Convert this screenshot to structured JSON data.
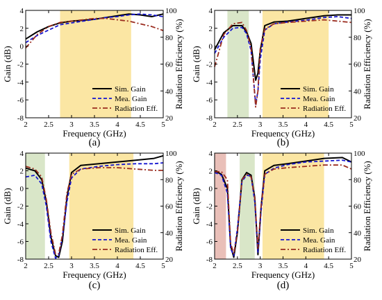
{
  "figure": {
    "x_axis_label": "Frequency (GHz)",
    "y_axis_left_label": "Gain (dB)",
    "y_axis_right_label": "Radiation Efficiency (%)",
    "legend_entries": [
      "Sim. Gain",
      "Mea. Gain",
      "Radiation Eff."
    ],
    "x_ticks": [
      "2",
      "2.5",
      "3",
      "3.5",
      "4",
      "4.5",
      "5"
    ],
    "y_left_ticks": [
      "-8",
      "-6",
      "-4",
      "-2",
      "0",
      "2",
      "4"
    ],
    "y_right_ticks": [
      "20",
      "40",
      "60",
      "80",
      "100"
    ]
  },
  "colors": {
    "sim": "#000000",
    "mea": "#1515d0",
    "eff": "#9a2b1e",
    "band_yellow": "#fbe6a3",
    "band_green": "#d9e6c8",
    "band_red": "#e9bfb8"
  },
  "chart_data": [
    {
      "type": "line",
      "panel_label": "(a)",
      "xlabel": "Frequency (GHz)",
      "ylabel": "Gain (dB)",
      "ylabel_right": "Radiation Efficiency (%)",
      "xlim": [
        2,
        5
      ],
      "ylim": [
        -8,
        4
      ],
      "ylim_right": [
        20,
        100
      ],
      "grid": false,
      "legend": "bottom-right",
      "bands": [
        {
          "from": 2.75,
          "to": 4.3,
          "color": "yellow"
        }
      ],
      "series": [
        {
          "name": "Sim. Gain",
          "axis": "left",
          "style": "solid",
          "x": [
            2.0,
            2.25,
            2.5,
            2.75,
            3.0,
            3.25,
            3.5,
            3.75,
            4.0,
            4.25,
            4.5,
            4.75,
            5.0
          ],
          "y": [
            0.8,
            1.6,
            2.2,
            2.6,
            2.8,
            2.9,
            3.0,
            3.2,
            3.4,
            3.6,
            3.5,
            3.3,
            3.6
          ]
        },
        {
          "name": "Mea. Gain",
          "axis": "left",
          "style": "dash",
          "x": [
            2.0,
            2.25,
            2.5,
            2.75,
            3.0,
            3.25,
            3.5,
            3.75,
            4.0,
            4.25,
            4.5,
            4.75,
            5.0
          ],
          "y": [
            0.4,
            1.2,
            1.8,
            2.4,
            2.6,
            2.8,
            3.0,
            3.2,
            3.3,
            3.5,
            3.6,
            3.5,
            3.3
          ]
        },
        {
          "name": "Radiation Eff.",
          "axis": "right",
          "style": "dashdot",
          "x": [
            2.0,
            2.25,
            2.5,
            2.75,
            3.0,
            3.25,
            3.5,
            3.75,
            4.0,
            4.25,
            4.5,
            4.75,
            5.0
          ],
          "y": [
            72,
            82,
            88,
            91,
            92,
            93,
            94,
            94,
            93,
            92,
            90,
            88,
            85
          ]
        }
      ]
    },
    {
      "type": "line",
      "panel_label": "(b)",
      "xlabel": "Frequency (GHz)",
      "ylabel": "Gain (dB)",
      "ylabel_right": "Radiation Efficiency (%)",
      "xlim": [
        2,
        5
      ],
      "ylim": [
        -8,
        4
      ],
      "ylim_right": [
        20,
        100
      ],
      "grid": false,
      "legend": "bottom-right",
      "bands": [
        {
          "from": 2.28,
          "to": 2.75,
          "color": "green"
        },
        {
          "from": 3.05,
          "to": 4.5,
          "color": "yellow"
        }
      ],
      "series": [
        {
          "name": "Sim. Gain",
          "axis": "left",
          "style": "solid",
          "x": [
            2.0,
            2.2,
            2.4,
            2.6,
            2.7,
            2.8,
            2.9,
            2.95,
            3.0,
            3.1,
            3.3,
            3.6,
            4.0,
            4.4,
            4.7,
            5.0
          ],
          "y": [
            -0.4,
            1.5,
            2.3,
            2.3,
            1.6,
            0.3,
            -3.8,
            -3.0,
            -0.5,
            2.3,
            2.7,
            2.8,
            3.1,
            3.4,
            3.5,
            3.5
          ]
        },
        {
          "name": "Mea. Gain",
          "axis": "left",
          "style": "dash",
          "x": [
            2.0,
            2.2,
            2.4,
            2.6,
            2.7,
            2.8,
            2.9,
            2.95,
            3.0,
            3.1,
            3.3,
            3.6,
            4.0,
            4.4,
            4.7,
            5.0
          ],
          "y": [
            -0.8,
            1.0,
            2.0,
            2.1,
            1.4,
            -0.5,
            -6.5,
            -5.0,
            -1.5,
            1.8,
            2.5,
            2.7,
            2.9,
            3.2,
            3.3,
            3.1
          ]
        },
        {
          "name": "Radiation Eff.",
          "axis": "right",
          "style": "dashdot",
          "x": [
            2.0,
            2.2,
            2.4,
            2.6,
            2.7,
            2.8,
            2.9,
            2.95,
            3.0,
            3.1,
            3.3,
            3.6,
            4.0,
            4.4,
            4.7,
            5.0
          ],
          "y": [
            58,
            82,
            90,
            91,
            85,
            72,
            28,
            40,
            72,
            86,
            90,
            91,
            92,
            93,
            92,
            91
          ]
        }
      ]
    },
    {
      "type": "line",
      "panel_label": "(c)",
      "xlabel": "Frequency (GHz)",
      "ylabel": "Gain (dB)",
      "ylabel_right": "Radiation Efficiency (%)",
      "xlim": [
        2,
        5
      ],
      "ylim": [
        -8,
        4
      ],
      "ylim_right": [
        20,
        100
      ],
      "grid": false,
      "legend": "bottom-right",
      "bands": [
        {
          "from": 2.0,
          "to": 2.42,
          "color": "green"
        },
        {
          "from": 2.95,
          "to": 4.35,
          "color": "yellow"
        }
      ],
      "series": [
        {
          "name": "Sim. Gain",
          "axis": "left",
          "style": "solid",
          "x": [
            2.0,
            2.2,
            2.35,
            2.45,
            2.55,
            2.65,
            2.72,
            2.8,
            2.9,
            3.0,
            3.2,
            3.6,
            4.0,
            4.4,
            4.8,
            5.0
          ],
          "y": [
            2.3,
            2.0,
            1.0,
            -1.5,
            -5.5,
            -7.6,
            -7.8,
            -6.0,
            -1.0,
            1.8,
            2.6,
            2.8,
            3.0,
            3.2,
            3.4,
            3.7
          ]
        },
        {
          "name": "Mea. Gain",
          "axis": "left",
          "style": "dash",
          "x": [
            2.0,
            2.2,
            2.35,
            2.45,
            2.55,
            2.65,
            2.72,
            2.8,
            2.9,
            3.0,
            3.2,
            3.6,
            4.0,
            4.4,
            4.8,
            5.0
          ],
          "y": [
            1.3,
            1.5,
            0.5,
            -2.0,
            -6.0,
            -7.9,
            -7.6,
            -5.5,
            -1.5,
            1.2,
            2.2,
            2.5,
            2.7,
            2.8,
            2.8,
            2.9
          ]
        },
        {
          "name": "Radiation Eff.",
          "axis": "right",
          "style": "dashdot",
          "x": [
            2.0,
            2.2,
            2.35,
            2.45,
            2.55,
            2.65,
            2.72,
            2.8,
            2.9,
            3.0,
            3.2,
            3.6,
            4.0,
            4.4,
            4.8,
            5.0
          ],
          "y": [
            90,
            88,
            82,
            65,
            40,
            24,
            24,
            38,
            70,
            84,
            88,
            89,
            89,
            88,
            87,
            87
          ]
        }
      ]
    },
    {
      "type": "line",
      "panel_label": "(d)",
      "xlabel": "Frequency (GHz)",
      "ylabel": "Gain (dB)",
      "ylabel_right": "Radiation Efficiency (%)",
      "xlim": [
        2,
        5
      ],
      "ylim": [
        -8,
        4
      ],
      "ylim_right": [
        20,
        100
      ],
      "grid": false,
      "legend": "bottom-right",
      "bands": [
        {
          "from": 2.0,
          "to": 2.25,
          "color": "red"
        },
        {
          "from": 2.55,
          "to": 2.88,
          "color": "green"
        },
        {
          "from": 3.05,
          "to": 4.4,
          "color": "yellow"
        }
      ],
      "series": [
        {
          "name": "Sim. Gain",
          "axis": "left",
          "style": "solid",
          "x": [
            2.0,
            2.15,
            2.28,
            2.35,
            2.42,
            2.5,
            2.6,
            2.7,
            2.8,
            2.88,
            2.95,
            3.02,
            3.1,
            3.3,
            3.6,
            4.0,
            4.4,
            4.8,
            5.0
          ],
          "y": [
            2.0,
            1.6,
            0.0,
            -6.5,
            -7.8,
            -5.0,
            1.0,
            1.8,
            1.5,
            -1.0,
            -7.5,
            -2.0,
            2.0,
            2.6,
            2.8,
            3.1,
            3.4,
            3.5,
            3.0
          ]
        },
        {
          "name": "Mea. Gain",
          "axis": "left",
          "style": "dash",
          "x": [
            2.0,
            2.15,
            2.28,
            2.35,
            2.42,
            2.5,
            2.6,
            2.7,
            2.8,
            2.88,
            2.95,
            3.02,
            3.1,
            3.3,
            3.6,
            4.0,
            4.4,
            4.8,
            5.0
          ],
          "y": [
            1.8,
            1.5,
            -0.5,
            -6.8,
            -7.6,
            -4.5,
            0.8,
            1.5,
            1.4,
            -1.5,
            -7.2,
            -2.5,
            1.6,
            2.3,
            2.7,
            3.0,
            3.1,
            3.2,
            3.0
          ]
        },
        {
          "name": "Radiation Eff.",
          "axis": "right",
          "style": "dashdot",
          "x": [
            2.0,
            2.15,
            2.28,
            2.35,
            2.42,
            2.5,
            2.6,
            2.7,
            2.8,
            2.88,
            2.95,
            3.02,
            3.1,
            3.3,
            3.6,
            4.0,
            4.4,
            4.8,
            5.0
          ],
          "y": [
            86,
            86,
            80,
            32,
            24,
            40,
            80,
            84,
            82,
            66,
            28,
            60,
            84,
            88,
            89,
            90,
            91,
            91,
            88
          ]
        }
      ]
    }
  ]
}
